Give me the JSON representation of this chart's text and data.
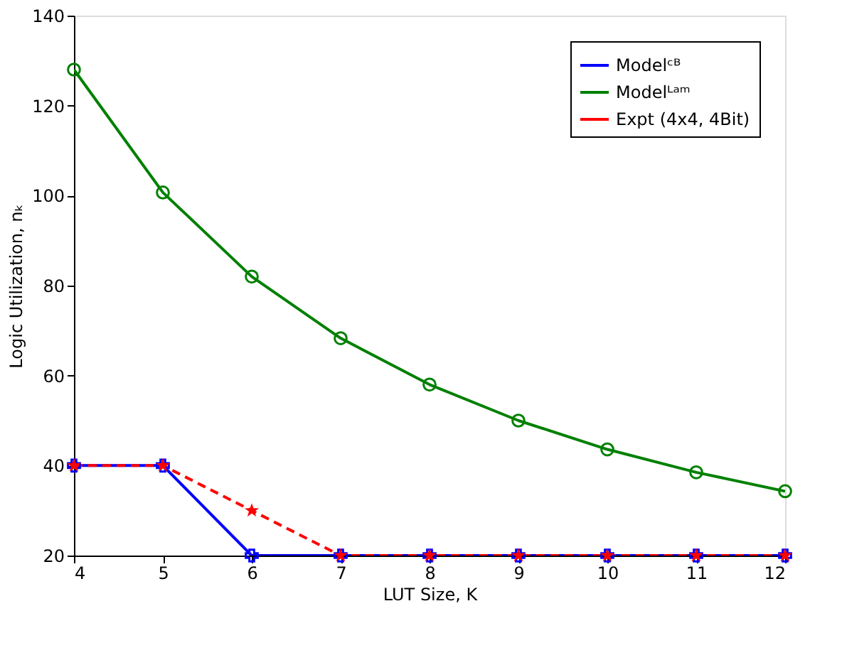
{
  "chart_data": {
    "type": "line",
    "xlabel": "LUT Size, K",
    "ylabel": "Logic Utilization, nₖ",
    "x": [
      4,
      5,
      6,
      7,
      8,
      9,
      10,
      11,
      12
    ],
    "xlim": [
      4,
      12
    ],
    "xticks": [
      4,
      5,
      6,
      7,
      8,
      9,
      10,
      11,
      12
    ],
    "ylim": [
      20,
      140
    ],
    "yticks": [
      20,
      40,
      60,
      80,
      100,
      120,
      140
    ],
    "grid": false,
    "legend": "top right",
    "series": [
      {
        "name": "Modelᶜᴮ",
        "color": "#0000ff",
        "marker": "cross",
        "line_style": "solid",
        "values": [
          40,
          40,
          20,
          20,
          20,
          20,
          20,
          20,
          20
        ]
      },
      {
        "name": "Modelᴸᵃᵐ",
        "color": "#008000",
        "marker": "circle",
        "line_style": "solid",
        "values": [
          128,
          100.7,
          82,
          68.3,
          58,
          50,
          43.6,
          38.5,
          34.3
        ]
      },
      {
        "name": "Expt (4x4, 4Bit)",
        "color": "#ff0000",
        "marker": "star",
        "line_style": "dashed",
        "values": [
          40,
          40,
          30,
          20,
          20,
          20,
          20,
          20,
          20
        ]
      }
    ]
  }
}
